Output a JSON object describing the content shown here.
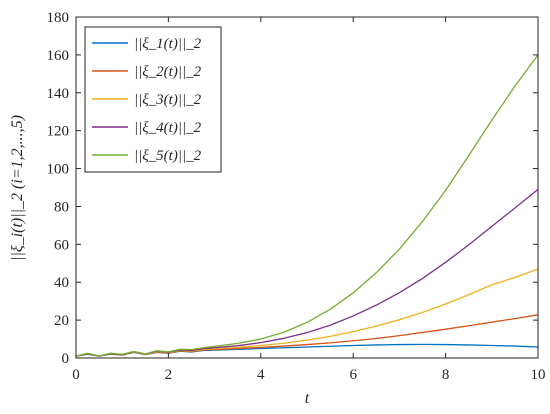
{
  "chart_data": {
    "type": "line",
    "xlabel": "t",
    "ylabel": "||ξ_i(t)||_2 (i=1,2,...,5)",
    "xlim": [
      0,
      10
    ],
    "ylim": [
      0,
      180
    ],
    "xticks": [
      "0",
      "2",
      "4",
      "6",
      "8",
      "10"
    ],
    "yticks": [
      "0",
      "20",
      "40",
      "60",
      "80",
      "100",
      "120",
      "140",
      "160",
      "180"
    ],
    "grid": false,
    "legend_position": "top-left",
    "x": [
      0,
      0.25,
      0.5,
      0.75,
      1,
      1.25,
      1.5,
      1.75,
      2,
      2.25,
      2.5,
      2.75,
      3,
      3.5,
      4,
      4.5,
      5,
      5.5,
      6,
      6.5,
      7,
      7.5,
      8,
      8.5,
      9,
      9.5,
      10
    ],
    "series": [
      {
        "name": "||ξ_1(t)||_2",
        "color": "#0072BD",
        "values": [
          1.0,
          2.0,
          1.0,
          2.0,
          1.5,
          3.0,
          1.8,
          3.0,
          2.5,
          3.6,
          3.2,
          4.0,
          4.2,
          4.6,
          5.0,
          5.4,
          5.8,
          6.2,
          6.6,
          6.9,
          7.1,
          7.2,
          7.1,
          6.9,
          6.6,
          6.3,
          5.8
        ]
      },
      {
        "name": "||ξ_2(t)||_2",
        "color": "#D95319",
        "values": [
          1.0,
          2.2,
          1.0,
          2.2,
          1.6,
          3.1,
          1.9,
          3.2,
          2.6,
          3.8,
          3.4,
          4.2,
          4.5,
          5.0,
          5.6,
          6.3,
          7.1,
          8.0,
          9.1,
          10.3,
          11.8,
          13.5,
          15.2,
          17.0,
          18.9,
          20.8,
          22.8
        ]
      },
      {
        "name": "||ξ_3(t)||_2",
        "color": "#EDB120",
        "values": [
          1.0,
          2.3,
          1.0,
          2.3,
          1.7,
          3.2,
          2.0,
          3.4,
          2.8,
          4.0,
          3.7,
          4.5,
          4.9,
          5.6,
          6.6,
          7.8,
          9.4,
          11.4,
          13.9,
          16.8,
          20.2,
          24.1,
          28.5,
          33.4,
          38.6,
          42.5,
          47.0
        ]
      },
      {
        "name": "||ξ_4(t)||_2",
        "color": "#7E2F8E",
        "values": [
          1.0,
          2.4,
          1.0,
          2.4,
          1.8,
          3.3,
          2.1,
          3.6,
          3.0,
          4.3,
          4.0,
          4.9,
          5.4,
          6.5,
          8.1,
          10.4,
          13.4,
          17.3,
          22.2,
          27.9,
          34.5,
          42.0,
          50.5,
          59.7,
          69.5,
          79.2,
          89.0
        ]
      },
      {
        "name": "||ξ_5(t)||_2",
        "color": "#77AC30",
        "values": [
          1.0,
          2.5,
          1.0,
          2.5,
          1.9,
          3.4,
          2.2,
          3.8,
          3.2,
          4.6,
          4.4,
          5.4,
          6.1,
          7.7,
          10.0,
          13.6,
          18.8,
          25.7,
          34.4,
          45.0,
          57.5,
          72.0,
          88.5,
          106.8,
          125.5,
          143.5,
          160.0
        ]
      }
    ]
  }
}
